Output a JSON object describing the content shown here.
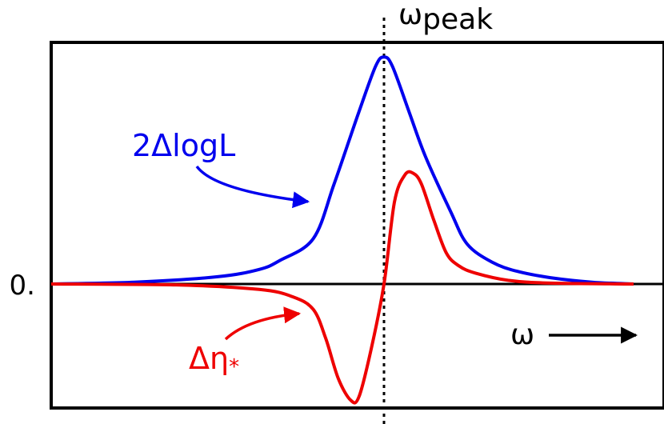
{
  "chart_data": {
    "type": "line",
    "title": "",
    "xlabel": "ω",
    "ylabel": "",
    "grid": false,
    "legend": "none",
    "ytick_label": "0.",
    "vline_label": "ω",
    "vline_label_sub": "peak",
    "xlim": [
      -8,
      6
    ],
    "ylim": [
      -1,
      1.5
    ],
    "peak_x": 0,
    "series": [
      {
        "name": "2ΔlogL",
        "color": "#0000ee",
        "x": [
          -8,
          -6,
          -4,
          -3,
          -2.5,
          -1.7,
          -1.2,
          -0.6,
          -0.2,
          0,
          0.2,
          0.6,
          1.0,
          1.6,
          2.0,
          2.6,
          3.2,
          4.0,
          5.0,
          6.0
        ],
        "y": [
          0.0,
          0.01,
          0.04,
          0.08,
          0.13,
          0.25,
          0.55,
          0.95,
          1.2,
          1.25,
          1.2,
          0.95,
          0.7,
          0.4,
          0.22,
          0.12,
          0.07,
          0.035,
          0.01,
          0.0
        ]
      },
      {
        "name": "Δη*",
        "color": "#ee0000",
        "x": [
          -8,
          -5,
          -3,
          -2.2,
          -1.7,
          -1.4,
          -1.1,
          -0.8,
          -0.6,
          -0.3,
          0,
          0.25,
          0.5,
          0.7,
          0.9,
          1.2,
          1.5,
          1.8,
          2.2,
          3.0,
          4.0,
          6.0
        ],
        "y": [
          0.0,
          -0.005,
          -0.03,
          -0.07,
          -0.14,
          -0.3,
          -0.52,
          -0.64,
          -0.62,
          -0.35,
          0.0,
          0.45,
          0.6,
          0.61,
          0.55,
          0.35,
          0.17,
          0.1,
          0.06,
          0.02,
          0.005,
          0.0
        ]
      }
    ],
    "annotations": [
      {
        "text": "2ΔlogL",
        "color": "#0000ee",
        "target_series": 0
      },
      {
        "text": "Δη",
        "sub": "*",
        "color": "#ee0000",
        "target_series": 1
      }
    ]
  }
}
